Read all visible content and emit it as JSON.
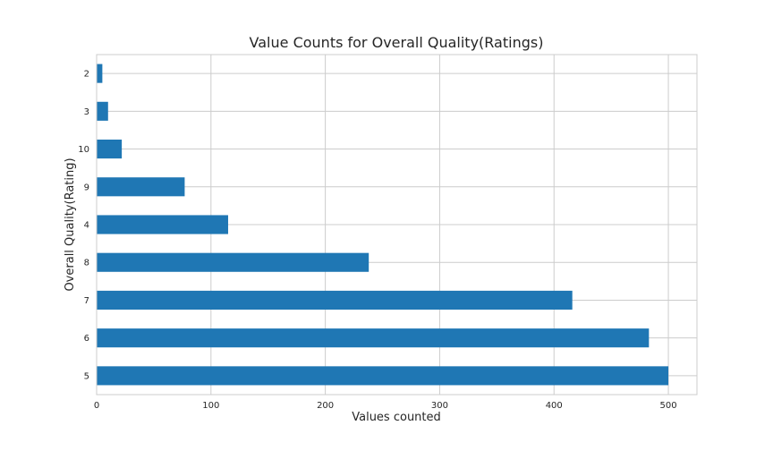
{
  "chart_data": {
    "type": "bar",
    "orientation": "horizontal",
    "title": "Value Counts for Overall Quality(Ratings)",
    "xlabel": "Values counted",
    "ylabel": "Overall Quality(Rating)",
    "categories": [
      "5",
      "6",
      "7",
      "8",
      "4",
      "9",
      "10",
      "3",
      "2"
    ],
    "values": [
      500,
      483,
      416,
      238,
      115,
      77,
      22,
      10,
      5
    ],
    "xlim": [
      0,
      525
    ],
    "xticks": [
      0,
      100,
      200,
      300,
      400,
      500
    ],
    "grid": true,
    "bar_color": "#1f77b4"
  }
}
